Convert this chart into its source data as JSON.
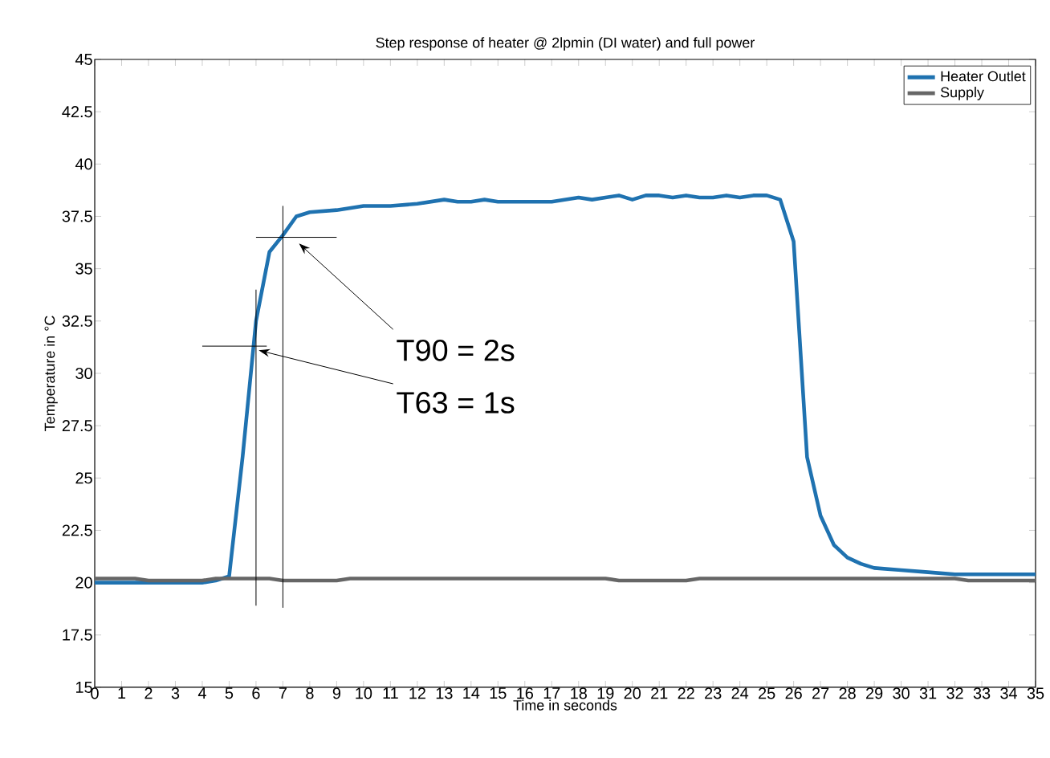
{
  "chart_data": {
    "type": "line",
    "title": "Step response of heater @ 2lpmin (DI water) and full power",
    "xlabel": "Time in seconds",
    "ylabel": "Temperature in °C",
    "xlim": [
      0,
      35
    ],
    "xticks": [
      0,
      1,
      2,
      3,
      4,
      5,
      6,
      7,
      8,
      9,
      10,
      11,
      12,
      13,
      14,
      15,
      16,
      17,
      18,
      19,
      20,
      21,
      22,
      23,
      24,
      25,
      26,
      27,
      28,
      29,
      30,
      31,
      32,
      33,
      34,
      35
    ],
    "ylim": [
      15,
      45
    ],
    "yticks": [
      15,
      {
        "value": 17.5,
        "label": "17.5"
      },
      20,
      {
        "value": 22.5,
        "label": "22.5"
      },
      25,
      {
        "value": 27.5,
        "label": "27.5"
      },
      30,
      {
        "value": 32.5,
        "label": "32.5"
      },
      35,
      {
        "value": 37.5,
        "label": "37.5"
      },
      40,
      {
        "value": 42.5,
        "label": "42.5"
      },
      45
    ],
    "grid": false,
    "legend": "top right",
    "marker": "none",
    "line_style": "solid",
    "series": [
      {
        "name": "Heater Outlet",
        "color": "#1f72b0",
        "x": [
          0,
          1,
          2,
          3,
          4,
          4.5,
          5,
          5.5,
          6,
          6.5,
          7,
          7.5,
          8,
          9,
          10,
          11,
          12,
          13,
          13.5,
          14,
          14.5,
          15,
          16,
          17,
          18,
          18.5,
          19,
          19.5,
          20,
          20.5,
          21,
          21.5,
          22,
          22.5,
          23,
          23.5,
          24,
          24.5,
          25,
          25.5,
          26,
          26.5,
          27,
          27.5,
          28,
          28.5,
          29,
          30,
          31,
          32,
          33,
          35
        ],
        "values": [
          20,
          20,
          20,
          20,
          20,
          20.1,
          20.3,
          26,
          32.5,
          35.8,
          36.6,
          37.5,
          37.7,
          37.8,
          38,
          38,
          38.1,
          38.3,
          38.2,
          38.2,
          38.3,
          38.2,
          38.2,
          38.2,
          38.4,
          38.3,
          38.4,
          38.5,
          38.3,
          38.5,
          38.5,
          38.4,
          38.5,
          38.4,
          38.4,
          38.5,
          38.4,
          38.5,
          38.5,
          38.3,
          36.3,
          26,
          23.2,
          21.8,
          21.2,
          20.9,
          20.7,
          20.6,
          20.5,
          20.4,
          20.4,
          20.4
        ]
      },
      {
        "name": "Supply",
        "color": "#666666",
        "x": [
          0,
          1.5,
          2,
          4,
          4.5,
          6.5,
          7,
          9,
          9.5,
          19,
          19.5,
          22,
          22.5,
          32,
          32.5,
          35
        ],
        "values": [
          20.2,
          20.2,
          20.1,
          20.1,
          20.2,
          20.2,
          20.1,
          20.1,
          20.2,
          20.2,
          20.1,
          20.1,
          20.2,
          20.2,
          20.1,
          20.1
        ]
      },
      {
        "color": "#000000",
        "x": [
          7,
          7
        ],
        "values": [
          18.8,
          38
        ]
      },
      {
        "color": "#000000",
        "x": [
          6,
          9
        ],
        "values": [
          36.5,
          36.5
        ]
      },
      {
        "color": "#000000",
        "x": [
          6,
          6
        ],
        "values": [
          18.9,
          34
        ]
      },
      {
        "color": "#000000",
        "x": [
          4,
          6.4
        ],
        "values": [
          31.3,
          31.3
        ]
      }
    ],
    "annotations": [
      {
        "text": "T90 = 2s",
        "x": 7.6,
        "y": 36.2
      },
      {
        "text": "T63 = 1s",
        "x": 6.1,
        "y": 31.1
      }
    ]
  }
}
